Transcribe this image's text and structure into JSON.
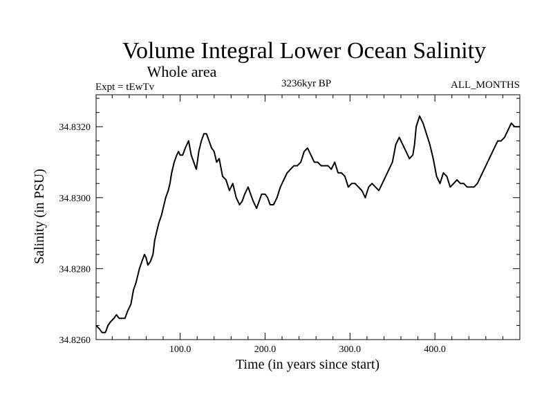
{
  "chart_data": {
    "type": "line",
    "title": "Volume Integral Lower Ocean Salinity",
    "subtitle": "Whole area",
    "left_label": "Expt = tEwTv",
    "center_label": "3236kyr BP",
    "right_label": "ALL_MONTHS",
    "xlabel": "Time (in years since start)",
    "ylabel": "Salinity (in PSU)",
    "xlim": [
      1,
      500
    ],
    "ylim": [
      34.826,
      34.8329
    ],
    "x_major_ticks": [
      100,
      200,
      300,
      400
    ],
    "x_tick_labels": [
      "100.0",
      "200.0",
      "300.0",
      "400.0"
    ],
    "x_minor_step": 20,
    "y_major_ticks": [
      34.826,
      34.828,
      34.83,
      34.832
    ],
    "y_tick_labels": [
      "34.8260",
      "34.8280",
      "34.8300",
      "34.8320"
    ],
    "y_minor_step": 0.0004,
    "series": [
      {
        "name": "salinity",
        "color": "#000000",
        "x": [
          1,
          5,
          8,
          12,
          15,
          18,
          22,
          25,
          28,
          32,
          35,
          38,
          42,
          45,
          48,
          52,
          55,
          58,
          60,
          62,
          65,
          68,
          70,
          72,
          75,
          78,
          80,
          83,
          86,
          88,
          90,
          93,
          96,
          98,
          100,
          103,
          106,
          110,
          113,
          116,
          119,
          122,
          125,
          128,
          131,
          134,
          137,
          140,
          143,
          146,
          150,
          154,
          158,
          162,
          166,
          170,
          173,
          176,
          180,
          183,
          186,
          190,
          193,
          196,
          200,
          203,
          206,
          210,
          214,
          218,
          222,
          226,
          230,
          234,
          238,
          242,
          246,
          250,
          254,
          258,
          262,
          266,
          270,
          274,
          278,
          282,
          286,
          290,
          294,
          298,
          302,
          306,
          310,
          314,
          318,
          322,
          326,
          330,
          334,
          338,
          342,
          346,
          350,
          354,
          358,
          362,
          366,
          370,
          374,
          376,
          378,
          382,
          386,
          390,
          394,
          398,
          402,
          406,
          410,
          414,
          418,
          422,
          426,
          430,
          434,
          438,
          442,
          446,
          450,
          454,
          458,
          462,
          466,
          470,
          474,
          478,
          482,
          486,
          490,
          494,
          497,
          500
        ],
        "values": [
          34.8264,
          34.8263,
          34.8262,
          34.8262,
          34.8264,
          34.8265,
          34.8266,
          34.8267,
          34.8266,
          34.8266,
          34.8266,
          34.8268,
          34.827,
          34.8274,
          34.8276,
          34.828,
          34.8282,
          34.8284,
          34.8283,
          34.8281,
          34.8282,
          34.8284,
          34.8288,
          34.829,
          34.8293,
          34.8295,
          34.8297,
          34.83,
          34.8302,
          34.8304,
          34.8307,
          34.831,
          34.8312,
          34.8313,
          34.8312,
          34.8312,
          34.8314,
          34.8316,
          34.8312,
          34.831,
          34.8308,
          34.8313,
          34.8316,
          34.8318,
          34.8318,
          34.8316,
          34.8314,
          34.8313,
          34.831,
          34.8311,
          34.8306,
          34.8305,
          34.8302,
          34.8304,
          34.83,
          34.8298,
          34.8299,
          34.8301,
          34.8303,
          34.8301,
          34.8299,
          34.8297,
          34.8299,
          34.8301,
          34.8301,
          34.83,
          34.8298,
          34.8298,
          34.83,
          34.8303,
          34.8305,
          34.8307,
          34.8308,
          34.8309,
          34.8309,
          34.831,
          34.8313,
          34.8314,
          34.8312,
          34.831,
          34.831,
          34.8309,
          34.8309,
          34.8309,
          34.8308,
          34.831,
          34.8307,
          34.8307,
          34.8306,
          34.8303,
          34.8304,
          34.8304,
          34.8303,
          34.8302,
          34.83,
          34.8303,
          34.8304,
          34.8303,
          34.8302,
          34.8304,
          34.8306,
          34.8308,
          34.831,
          34.8315,
          34.8317,
          34.8315,
          34.8313,
          34.8311,
          34.8312,
          34.8315,
          34.832,
          34.8323,
          34.8321,
          34.8318,
          34.8315,
          34.8311,
          34.8306,
          34.8304,
          34.8307,
          34.8306,
          34.8303,
          34.8304,
          34.8305,
          34.8304,
          34.8304,
          34.8303,
          34.8303,
          34.8303,
          34.8304,
          34.8306,
          34.8308,
          34.831,
          34.8312,
          34.8314,
          34.8316,
          34.8316,
          34.8317,
          34.8319,
          34.8321,
          34.832,
          34.832,
          34.832
        ]
      }
    ]
  }
}
